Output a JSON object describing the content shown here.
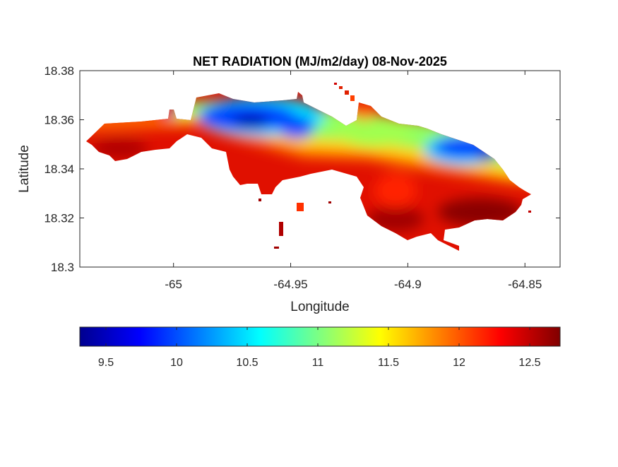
{
  "chart_data": {
    "type": "heatmap",
    "title": "NET RADIATION (MJ/m2/day) 08-Nov-2025",
    "xlabel": "Longitude",
    "ylabel": "Latitude",
    "xlim": [
      -65.04,
      -64.835
    ],
    "ylim": [
      18.3,
      18.38
    ],
    "xticks": [
      -65,
      -64.95,
      -64.9,
      -64.85
    ],
    "xtick_labels": [
      "-65",
      "-64.95",
      "-64.9",
      "-64.85"
    ],
    "yticks": [
      18.3,
      18.32,
      18.34,
      18.36,
      18.38
    ],
    "ytick_labels": [
      "18.3",
      "18.32",
      "18.34",
      "18.36",
      "18.38"
    ],
    "grid": false,
    "colormap": "jet",
    "colorbar": {
      "location": "bottom",
      "clim": [
        9.315,
        12.715
      ],
      "ticks": [
        9.5,
        10,
        10.5,
        11,
        11.5,
        12,
        12.5
      ],
      "tick_labels": [
        "9.5",
        "10",
        "10.5",
        "11",
        "11.5",
        "12",
        "12.5"
      ]
    },
    "description_values": {
      "min_approx": 9.4,
      "max_approx": 12.7
    }
  }
}
